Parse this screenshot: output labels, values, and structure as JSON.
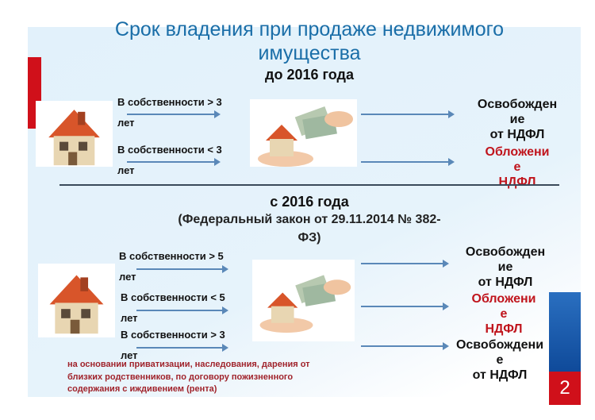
{
  "title": {
    "line1": "Срок владения  при продаже недвижимого",
    "line2": "имущества"
  },
  "before": {
    "heading": "до 2016 года",
    "rows": [
      {
        "label": "В собственности > 3",
        "unit": "лет"
      },
      {
        "label": "В собственности < 3",
        "unit": "лет"
      }
    ],
    "results": [
      {
        "lines": [
          "Освобожден",
          "ие",
          "от НДФЛ"
        ]
      },
      {
        "lines": [
          "Обложени",
          "е",
          "НДФЛ"
        ]
      }
    ]
  },
  "after": {
    "heading": "с 2016 года",
    "law_line1": "(Федеральный закон от 29.11.2014 № 382-",
    "law_line2": "ФЗ)",
    "rows": [
      {
        "label": "В собственности > 5",
        "unit": "лет"
      },
      {
        "label": "В собственности < 5",
        "unit": "лет"
      },
      {
        "label": "В собственности > 3",
        "unit": "лет"
      }
    ],
    "results": [
      {
        "lines": [
          "Освобожден",
          "ие",
          "от НДФЛ"
        ]
      },
      {
        "lines": [
          "Обложени",
          "е",
          "НДФЛ"
        ]
      },
      {
        "lines": [
          "Освобождени",
          "е",
          "от НДФЛ"
        ]
      }
    ]
  },
  "footnote": " на основании  приватизации,  наследования, дарения от близких родственников,  по договору пожизненного содержания с иждивением (рента)",
  "slide_number": "2",
  "colors": {
    "title": "#1a6ea8",
    "tax": "#c0141c",
    "footnote": "#a0232b",
    "accent_red": "#d0101a",
    "accent_blue": "#1f5fae"
  }
}
